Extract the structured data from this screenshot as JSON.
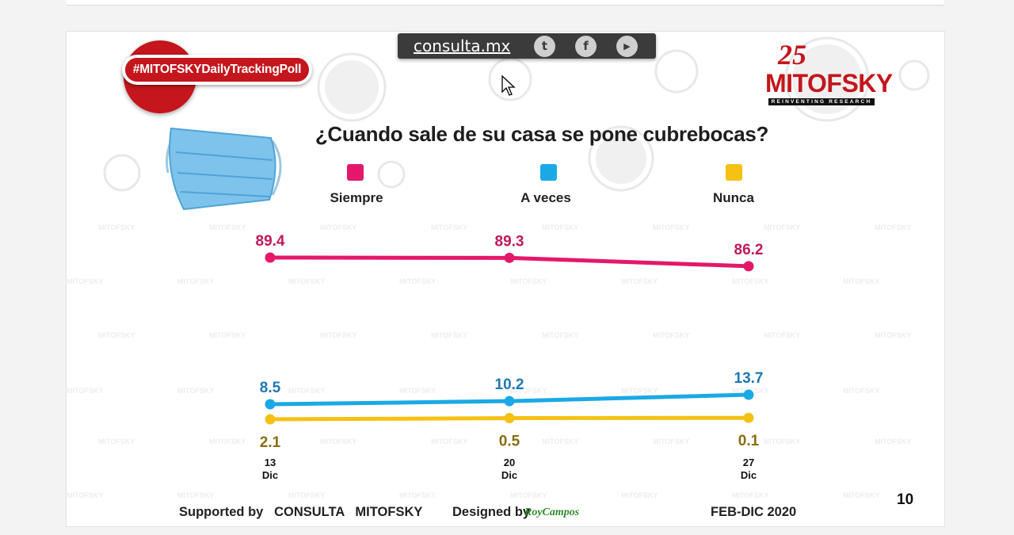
{
  "header": {
    "hashtag": "#MITOFSKYDailyTrackingPoll",
    "site_link": "consulta.mx",
    "social": [
      {
        "icon": "twitter-icon",
        "glyph": "t"
      },
      {
        "icon": "facebook-icon",
        "glyph": "f"
      },
      {
        "icon": "youtube-icon",
        "glyph": "▶"
      }
    ],
    "logo_number": "25",
    "logo_name": "MITOFSKY",
    "logo_tagline": "REINVENTING RESEARCH"
  },
  "chart_data": {
    "type": "line",
    "title": "¿Cuando sale de su casa se pone cubrebocas?",
    "categories": [
      {
        "day": "13",
        "month": "Dic"
      },
      {
        "day": "20",
        "month": "Dic"
      },
      {
        "day": "27",
        "month": "Dic"
      }
    ],
    "ylim": [
      0,
      100
    ],
    "series": [
      {
        "name": "Siempre",
        "color": "#e4186a",
        "label_color": "#c2185b",
        "values": [
          89.4,
          89.3,
          86.2
        ],
        "labels": [
          "89.4",
          "89.3",
          "86.2"
        ],
        "label_pos": "above"
      },
      {
        "name": "A veces",
        "color": "#1aa9e5",
        "label_color": "#1f78b4",
        "values": [
          8.5,
          10.2,
          13.7
        ],
        "labels": [
          "8.5",
          "10.2",
          "13.7"
        ],
        "label_pos": "above"
      },
      {
        "name": "Nunca",
        "color": "#f5c113",
        "label_color": "#8a6d12",
        "values": [
          2.1,
          0.5,
          0.1
        ],
        "labels": [
          "2.1",
          "0.5",
          "0.1"
        ],
        "label_pos": "below"
      }
    ]
  },
  "footer": {
    "supported": "Supported by   CONSULTA   MITOFSKY",
    "designed": "Designed by",
    "designer": "RoyCampos",
    "period": "FEB-DIC 2020",
    "page_number": "10"
  }
}
